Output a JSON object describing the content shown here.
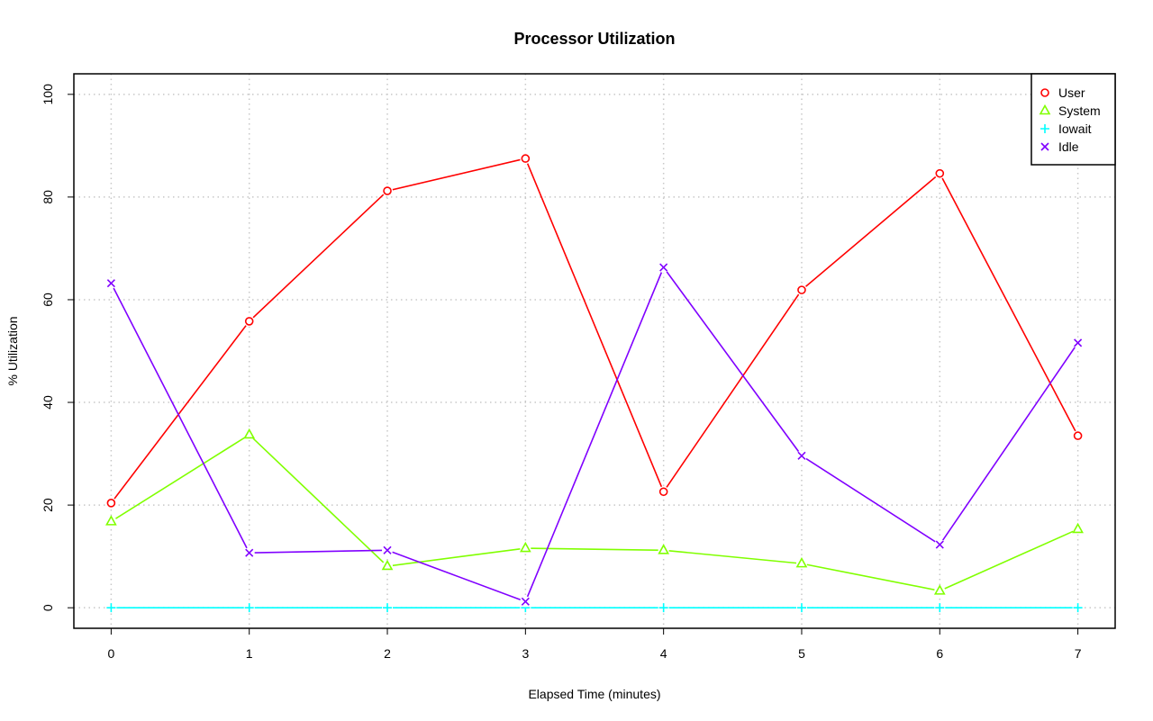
{
  "chart_data": {
    "type": "line",
    "title": "Processor Utilization",
    "xlabel": "Elapsed Time (minutes)",
    "ylabel": "% Utilization",
    "x": [
      0,
      1,
      2,
      3,
      4,
      5,
      6,
      7
    ],
    "xlim": [
      -0.27,
      7.27
    ],
    "ylim": [
      -4,
      104
    ],
    "xticks": [
      "0",
      "1",
      "2",
      "3",
      "4",
      "5",
      "6",
      "7"
    ],
    "yticks": [
      "0",
      "20",
      "40",
      "60",
      "80",
      "100"
    ],
    "grid": true,
    "legend_position": "top-right",
    "series": [
      {
        "name": "User",
        "color": "#ff0000",
        "marker": "circle",
        "values": [
          20.4,
          55.8,
          81.2,
          87.5,
          22.6,
          61.9,
          84.6,
          33.5
        ]
      },
      {
        "name": "System",
        "color": "#80ff00",
        "marker": "triangle",
        "values": [
          16.8,
          33.7,
          8.1,
          11.6,
          11.2,
          8.6,
          3.3,
          15.3
        ]
      },
      {
        "name": "Iowait",
        "color": "#00ffff",
        "marker": "plus",
        "values": [
          0,
          0,
          0,
          0,
          0,
          0,
          0,
          0
        ]
      },
      {
        "name": "Idle",
        "color": "#8000ff",
        "marker": "cross",
        "values": [
          63.2,
          10.7,
          11.2,
          1.2,
          66.3,
          29.6,
          12.3,
          51.6
        ]
      }
    ]
  }
}
